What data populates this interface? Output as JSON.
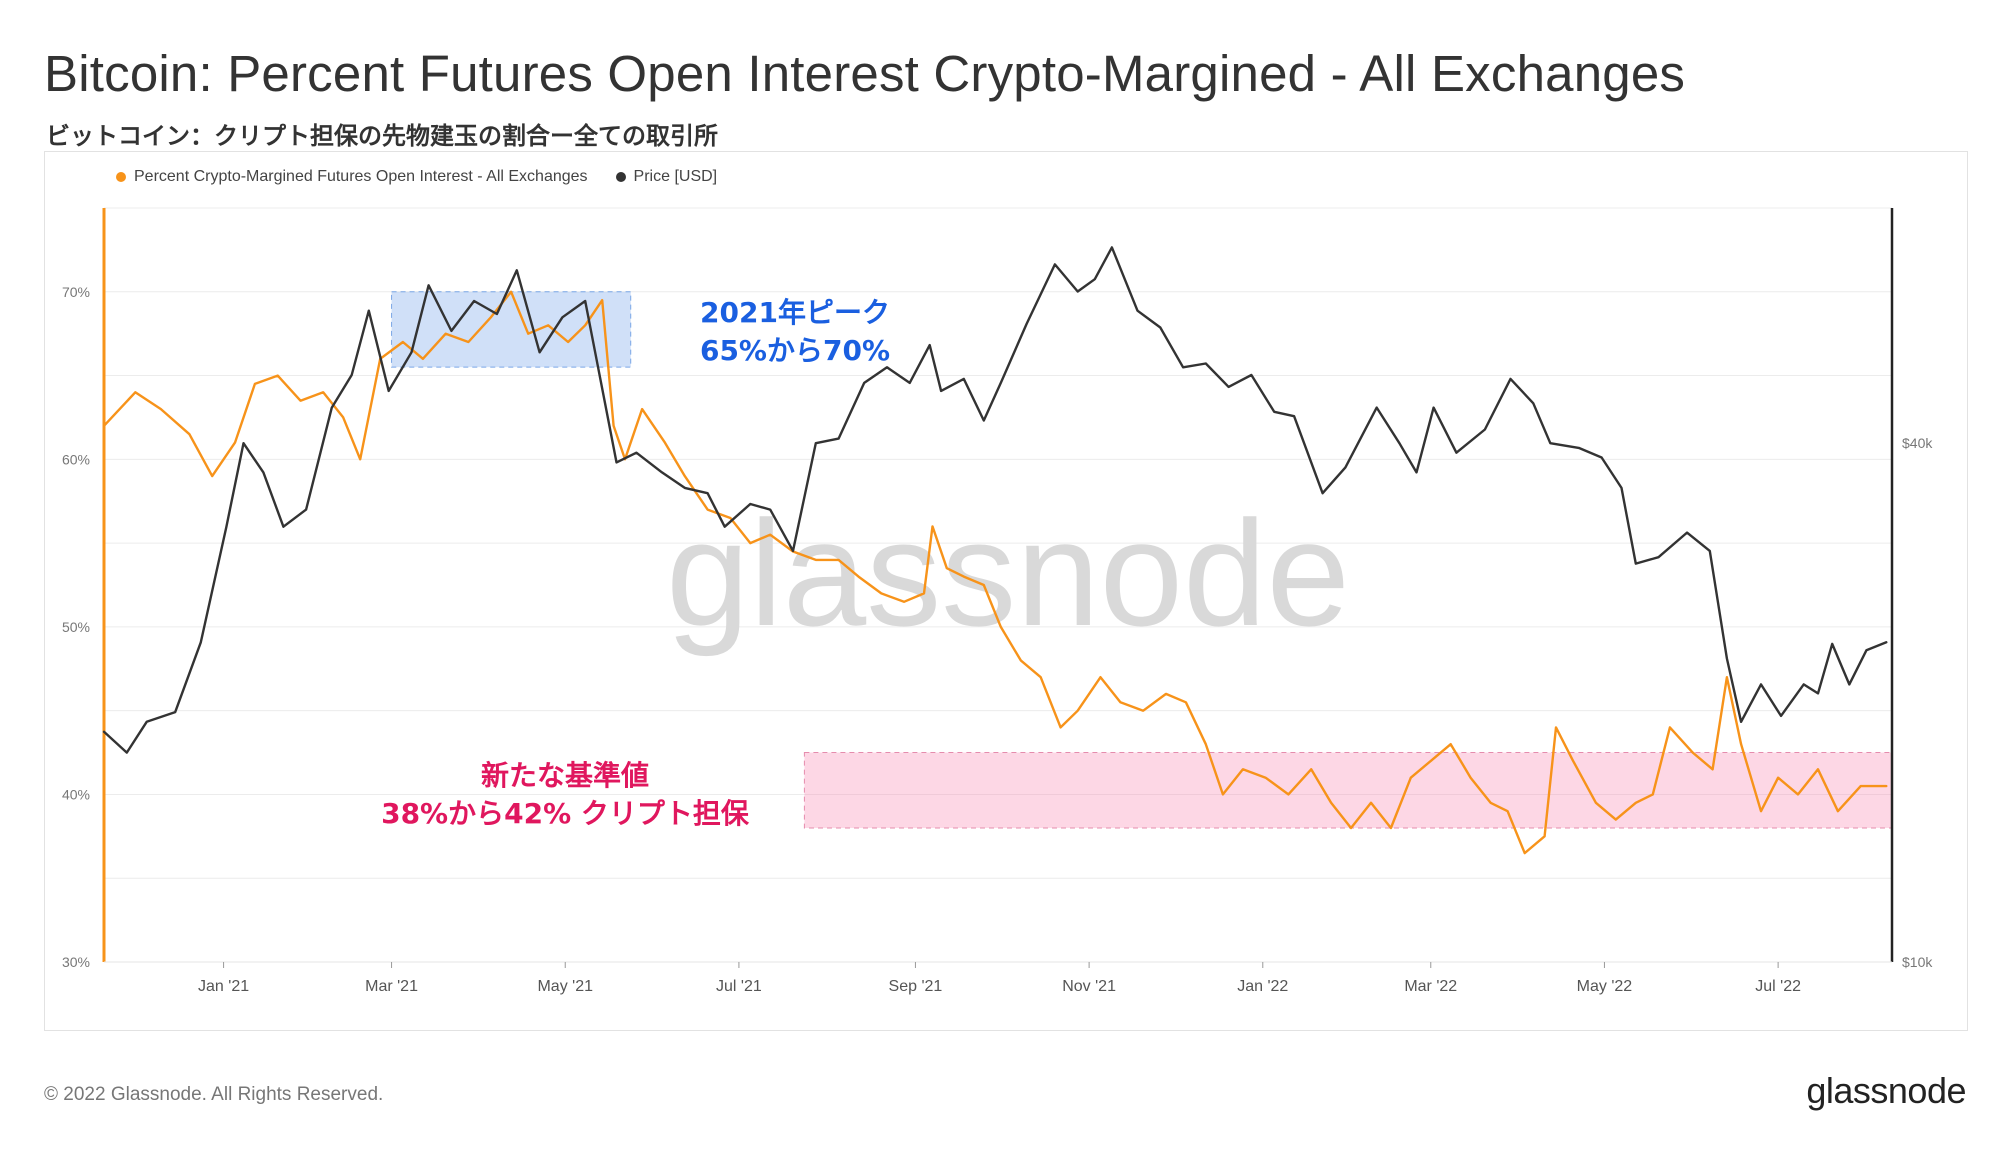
{
  "header": {
    "title": "Bitcoin: Percent Futures Open Interest Crypto-Margined - All Exchanges",
    "subtitle": "ビットコイン：クリプト担保の先物建玉の割合ー全ての取引所"
  },
  "footer": {
    "copyright": "© 2022 Glassnode. All Rights Reserved.",
    "logo_text": "glassnode"
  },
  "watermark": "glassnode",
  "chart_data": {
    "type": "line",
    "legend": [
      {
        "name": "Percent Crypto-Margined Futures Open Interest - All Exchanges",
        "color": "#f7931a"
      },
      {
        "name": "Price [USD]",
        "color": "#333333"
      }
    ],
    "left_axis": {
      "ticks": [
        "70%",
        "60%",
        "50%",
        "40%",
        "30%"
      ],
      "values": [
        70,
        60,
        50,
        40,
        30
      ],
      "ylim": [
        30,
        75
      ]
    },
    "right_axis": {
      "ticks": [
        "$40k",
        "$10k"
      ],
      "values": [
        40000,
        10000
      ],
      "scale": "log",
      "ylim": [
        10000,
        75000
      ]
    },
    "x_ticks": [
      "Jan '21",
      "Mar '21",
      "May '21",
      "Jul '21",
      "Sep '21",
      "Nov '21",
      "Jan '22",
      "Mar '22",
      "May '22",
      "Jul '22"
    ],
    "x_tick_dates": [
      "2021-01-01",
      "2021-03-01",
      "2021-05-01",
      "2021-07-01",
      "2021-09-01",
      "2021-11-01",
      "2022-01-01",
      "2022-03-01",
      "2022-05-01",
      "2022-07-01"
    ],
    "x_range": [
      "2020-11-20",
      "2022-08-10"
    ],
    "grid": true,
    "series": [
      {
        "name": "Percent Crypto-Margined Futures Open Interest - All Exchanges",
        "axis": "left",
        "color": "#f7931a",
        "points": [
          [
            "2020-11-20",
            62
          ],
          [
            "2020-12-01",
            64
          ],
          [
            "2020-12-10",
            63
          ],
          [
            "2020-12-20",
            61.5
          ],
          [
            "2020-12-28",
            59
          ],
          [
            "2021-01-05",
            61
          ],
          [
            "2021-01-12",
            64.5
          ],
          [
            "2021-01-20",
            65
          ],
          [
            "2021-01-28",
            63.5
          ],
          [
            "2021-02-05",
            64
          ],
          [
            "2021-02-12",
            62.5
          ],
          [
            "2021-02-18",
            60
          ],
          [
            "2021-02-25",
            66
          ],
          [
            "2021-03-05",
            67
          ],
          [
            "2021-03-12",
            66
          ],
          [
            "2021-03-20",
            67.5
          ],
          [
            "2021-03-28",
            67
          ],
          [
            "2021-04-05",
            68.5
          ],
          [
            "2021-04-12",
            70
          ],
          [
            "2021-04-18",
            67.5
          ],
          [
            "2021-04-25",
            68
          ],
          [
            "2021-05-02",
            67
          ],
          [
            "2021-05-08",
            68
          ],
          [
            "2021-05-14",
            69.5
          ],
          [
            "2021-05-18",
            62
          ],
          [
            "2021-05-22",
            60
          ],
          [
            "2021-05-28",
            63
          ],
          [
            "2021-06-05",
            61
          ],
          [
            "2021-06-12",
            59
          ],
          [
            "2021-06-20",
            57
          ],
          [
            "2021-06-28",
            56.5
          ],
          [
            "2021-07-05",
            55
          ],
          [
            "2021-07-12",
            55.5
          ],
          [
            "2021-07-20",
            54.5
          ],
          [
            "2021-07-28",
            54
          ],
          [
            "2021-08-05",
            54
          ],
          [
            "2021-08-12",
            53
          ],
          [
            "2021-08-20",
            52
          ],
          [
            "2021-08-28",
            51.5
          ],
          [
            "2021-09-04",
            52
          ],
          [
            "2021-09-07",
            56
          ],
          [
            "2021-09-12",
            53.5
          ],
          [
            "2021-09-18",
            53
          ],
          [
            "2021-09-25",
            52.5
          ],
          [
            "2021-10-01",
            50
          ],
          [
            "2021-10-08",
            48
          ],
          [
            "2021-10-15",
            47
          ],
          [
            "2021-10-22",
            44
          ],
          [
            "2021-10-28",
            45
          ],
          [
            "2021-11-05",
            47
          ],
          [
            "2021-11-12",
            45.5
          ],
          [
            "2021-11-20",
            45
          ],
          [
            "2021-11-28",
            46
          ],
          [
            "2021-12-05",
            45.5
          ],
          [
            "2021-12-12",
            43
          ],
          [
            "2021-12-18",
            40
          ],
          [
            "2021-12-25",
            41.5
          ],
          [
            "2022-01-02",
            41
          ],
          [
            "2022-01-10",
            40
          ],
          [
            "2022-01-18",
            41.5
          ],
          [
            "2022-01-25",
            39.5
          ],
          [
            "2022-02-01",
            38
          ],
          [
            "2022-02-08",
            39.5
          ],
          [
            "2022-02-15",
            38
          ],
          [
            "2022-02-22",
            41
          ],
          [
            "2022-03-01",
            42
          ],
          [
            "2022-03-08",
            43
          ],
          [
            "2022-03-15",
            41
          ],
          [
            "2022-03-22",
            39.5
          ],
          [
            "2022-03-28",
            39
          ],
          [
            "2022-04-03",
            36.5
          ],
          [
            "2022-04-10",
            37.5
          ],
          [
            "2022-04-14",
            44
          ],
          [
            "2022-04-20",
            42
          ],
          [
            "2022-04-28",
            39.5
          ],
          [
            "2022-05-05",
            38.5
          ],
          [
            "2022-05-12",
            39.5
          ],
          [
            "2022-05-18",
            40
          ],
          [
            "2022-05-24",
            44
          ],
          [
            "2022-06-01",
            42.5
          ],
          [
            "2022-06-08",
            41.5
          ],
          [
            "2022-06-13",
            47
          ],
          [
            "2022-06-18",
            43
          ],
          [
            "2022-06-25",
            39
          ],
          [
            "2022-07-01",
            41
          ],
          [
            "2022-07-08",
            40
          ],
          [
            "2022-07-15",
            41.5
          ],
          [
            "2022-07-22",
            39
          ],
          [
            "2022-07-30",
            40.5
          ],
          [
            "2022-08-08",
            40.5
          ]
        ]
      },
      {
        "name": "Price [USD]",
        "axis": "right",
        "color": "#333333",
        "points": [
          [
            "2020-11-20",
            18500
          ],
          [
            "2020-11-28",
            17500
          ],
          [
            "2020-12-05",
            19000
          ],
          [
            "2020-12-15",
            19500
          ],
          [
            "2020-12-24",
            23500
          ],
          [
            "2021-01-02",
            32000
          ],
          [
            "2021-01-08",
            40000
          ],
          [
            "2021-01-15",
            37000
          ],
          [
            "2021-01-22",
            32000
          ],
          [
            "2021-01-30",
            33500
          ],
          [
            "2021-02-08",
            44000
          ],
          [
            "2021-02-15",
            48000
          ],
          [
            "2021-02-21",
            57000
          ],
          [
            "2021-02-28",
            46000
          ],
          [
            "2021-03-08",
            51000
          ],
          [
            "2021-03-14",
            61000
          ],
          [
            "2021-03-22",
            54000
          ],
          [
            "2021-03-30",
            58500
          ],
          [
            "2021-04-07",
            56500
          ],
          [
            "2021-04-14",
            63500
          ],
          [
            "2021-04-22",
            51000
          ],
          [
            "2021-04-30",
            56000
          ],
          [
            "2021-05-08",
            58500
          ],
          [
            "2021-05-12",
            50000
          ],
          [
            "2021-05-19",
            38000
          ],
          [
            "2021-05-26",
            39000
          ],
          [
            "2021-06-04",
            37000
          ],
          [
            "2021-06-12",
            35500
          ],
          [
            "2021-06-20",
            35000
          ],
          [
            "2021-06-26",
            32000
          ],
          [
            "2021-07-05",
            34000
          ],
          [
            "2021-07-12",
            33500
          ],
          [
            "2021-07-20",
            30000
          ],
          [
            "2021-07-28",
            40000
          ],
          [
            "2021-08-05",
            40500
          ],
          [
            "2021-08-14",
            47000
          ],
          [
            "2021-08-22",
            49000
          ],
          [
            "2021-08-30",
            47000
          ],
          [
            "2021-09-06",
            52000
          ],
          [
            "2021-09-10",
            46000
          ],
          [
            "2021-09-18",
            47500
          ],
          [
            "2021-09-25",
            42500
          ],
          [
            "2021-10-01",
            47000
          ],
          [
            "2021-10-10",
            55000
          ],
          [
            "2021-10-20",
            64500
          ],
          [
            "2021-10-28",
            60000
          ],
          [
            "2021-11-03",
            62000
          ],
          [
            "2021-11-09",
            67500
          ],
          [
            "2021-11-18",
            57000
          ],
          [
            "2021-11-26",
            54500
          ],
          [
            "2021-12-04",
            49000
          ],
          [
            "2021-12-12",
            49500
          ],
          [
            "2021-12-20",
            46500
          ],
          [
            "2021-12-28",
            48000
          ],
          [
            "2022-01-05",
            43500
          ],
          [
            "2022-01-12",
            43000
          ],
          [
            "2022-01-22",
            35000
          ],
          [
            "2022-01-30",
            37500
          ],
          [
            "2022-02-10",
            44000
          ],
          [
            "2022-02-18",
            40000
          ],
          [
            "2022-02-24",
            37000
          ],
          [
            "2022-03-02",
            44000
          ],
          [
            "2022-03-10",
            39000
          ],
          [
            "2022-03-20",
            41500
          ],
          [
            "2022-03-29",
            47500
          ],
          [
            "2022-04-06",
            44500
          ],
          [
            "2022-04-12",
            40000
          ],
          [
            "2022-04-22",
            39500
          ],
          [
            "2022-04-30",
            38500
          ],
          [
            "2022-05-07",
            35500
          ],
          [
            "2022-05-12",
            29000
          ],
          [
            "2022-05-20",
            29500
          ],
          [
            "2022-05-30",
            31500
          ],
          [
            "2022-06-07",
            30000
          ],
          [
            "2022-06-13",
            22500
          ],
          [
            "2022-06-18",
            19000
          ],
          [
            "2022-06-25",
            21000
          ],
          [
            "2022-07-02",
            19300
          ],
          [
            "2022-07-10",
            21000
          ],
          [
            "2022-07-15",
            20500
          ],
          [
            "2022-07-20",
            23400
          ],
          [
            "2022-07-26",
            21000
          ],
          [
            "2022-08-01",
            23000
          ],
          [
            "2022-08-08",
            23500
          ]
        ]
      }
    ],
    "annotations": [
      {
        "label": [
          "2021年ピーク",
          "65%から70%"
        ],
        "color": "#1a5fe0",
        "x_range": [
          "2021-03-01",
          "2021-05-24"
        ],
        "y_range": [
          65.5,
          70
        ]
      },
      {
        "label": [
          "新たな基準値",
          "38%から42% クリプト担保"
        ],
        "color": "#e0175e",
        "x_range": [
          "2021-07-24",
          "2022-08-10"
        ],
        "y_range": [
          38,
          42.5
        ]
      }
    ]
  }
}
